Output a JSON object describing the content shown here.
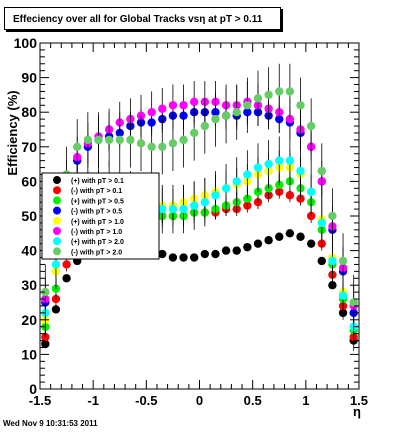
{
  "title": "Effeciency over all for Global Tracks vsη at pT > 0.11",
  "footer": "Wed Nov  9 10:31:53 2011",
  "chart_data": {
    "type": "scatter",
    "xlabel": "η",
    "ylabel": "Efficiency (%)",
    "xlim": [
      -1.5,
      1.5
    ],
    "ylim": [
      0,
      100
    ],
    "x_ticks": [
      "-1.5",
      "-1",
      "-0.5",
      "0",
      "0.5",
      "1",
      "1.5"
    ],
    "y_ticks": [
      "0",
      "10",
      "20",
      "30",
      "40",
      "50",
      "60",
      "70",
      "80",
      "90",
      "100"
    ],
    "grid": false,
    "legend_position": "left",
    "x": [
      -1.45,
      -1.35,
      -1.25,
      -1.15,
      -1.05,
      -0.95,
      -0.85,
      -0.75,
      -0.65,
      -0.55,
      -0.45,
      -0.35,
      -0.25,
      -0.15,
      -0.05,
      0.05,
      0.15,
      0.25,
      0.35,
      0.45,
      0.55,
      0.65,
      0.75,
      0.85,
      0.95,
      1.05,
      1.15,
      1.25,
      1.35,
      1.45
    ],
    "series": [
      {
        "name": "(+) with pT > 0.1",
        "color": "#000000",
        "values": [
          13,
          23,
          32,
          37,
          39,
          40,
          40,
          40,
          40,
          39,
          39,
          39,
          38,
          38,
          38,
          39,
          39,
          40,
          40,
          41,
          42,
          43,
          44,
          45,
          44,
          42,
          37,
          30,
          22,
          14
        ],
        "err": [
          1,
          1,
          1,
          1,
          1,
          1,
          1,
          1,
          1,
          1,
          1,
          1,
          1,
          1,
          1,
          1,
          1,
          1,
          1,
          1,
          1,
          1,
          1,
          1,
          1,
          1,
          1,
          1,
          1,
          1
        ]
      },
      {
        "name": "(-) with pT > 0.1",
        "color": "#ff0000",
        "values": [
          15,
          26,
          36,
          44,
          48,
          51,
          51,
          51,
          51,
          51,
          51,
          50,
          50,
          50,
          51,
          51,
          51,
          52,
          52,
          53,
          54,
          56,
          57,
          56,
          55,
          50,
          42,
          33,
          24,
          15
        ],
        "err": [
          2,
          2,
          2,
          2,
          2,
          2,
          2,
          2,
          2,
          2,
          2,
          2,
          2,
          2,
          2,
          2,
          2,
          2,
          2,
          2,
          2,
          2,
          2,
          2,
          2,
          2,
          2,
          2,
          2,
          2
        ]
      },
      {
        "name": "(+) with pT > 0.5",
        "color": "#00ee00",
        "values": [
          18,
          29,
          41,
          50,
          53,
          54,
          54,
          54,
          53,
          52,
          51,
          50,
          50,
          50,
          51,
          51,
          52,
          53,
          54,
          55,
          57,
          58,
          59,
          60,
          58,
          54,
          46,
          36,
          26,
          17
        ],
        "err": [
          3,
          3,
          3,
          3,
          3,
          3,
          3,
          3,
          3,
          3,
          3,
          3,
          3,
          3,
          3,
          3,
          3,
          3,
          3,
          3,
          3,
          3,
          3,
          3,
          3,
          3,
          3,
          3,
          3,
          3
        ]
      },
      {
        "name": "(-) with pT > 0.5",
        "color": "#0000ff",
        "values": [
          25,
          42,
          58,
          66,
          70,
          72,
          73,
          74,
          76,
          77,
          77,
          78,
          79,
          79,
          80,
          80,
          80,
          79,
          79,
          80,
          80,
          79,
          78,
          77,
          74,
          70,
          60,
          46,
          34,
          22
        ],
        "err": [
          4,
          4,
          4,
          4,
          4,
          4,
          4,
          4,
          4,
          4,
          4,
          4,
          4,
          4,
          4,
          4,
          4,
          4,
          4,
          4,
          4,
          4,
          4,
          4,
          4,
          4,
          4,
          4,
          4,
          4
        ]
      },
      {
        "name": "(+) with pT > 1.0",
        "color": "#ffff00",
        "values": [
          20,
          34,
          48,
          56,
          58,
          58,
          57,
          56,
          55,
          54,
          53,
          53,
          53,
          54,
          55,
          56,
          57,
          58,
          59,
          60,
          62,
          63,
          64,
          64,
          62,
          57,
          49,
          38,
          28,
          18
        ],
        "err": [
          5,
          5,
          5,
          5,
          5,
          5,
          5,
          5,
          5,
          5,
          5,
          5,
          5,
          5,
          5,
          5,
          5,
          5,
          5,
          5,
          5,
          5,
          5,
          5,
          5,
          5,
          5,
          5,
          5,
          5
        ]
      },
      {
        "name": "(-) with pT > 1.0",
        "color": "#ff00ff",
        "values": [
          26,
          44,
          60,
          67,
          71,
          73,
          75,
          77,
          78,
          79,
          80,
          81,
          82,
          82,
          83,
          83,
          83,
          82,
          82,
          83,
          82,
          81,
          80,
          78,
          75,
          70,
          60,
          47,
          35,
          24
        ],
        "err": [
          6,
          6,
          6,
          6,
          6,
          6,
          6,
          6,
          6,
          6,
          6,
          6,
          6,
          6,
          6,
          6,
          6,
          6,
          6,
          6,
          6,
          6,
          6,
          6,
          6,
          6,
          6,
          6,
          6,
          6
        ]
      },
      {
        "name": "(+) with pT > 2.0",
        "color": "#00ffff",
        "values": [
          22,
          36,
          50,
          58,
          60,
          60,
          59,
          57,
          56,
          55,
          53,
          52,
          52,
          52,
          53,
          54,
          56,
          58,
          60,
          62,
          64,
          65,
          66,
          66,
          63,
          57,
          48,
          37,
          27,
          18
        ],
        "err": [
          7,
          7,
          7,
          7,
          7,
          7,
          7,
          7,
          7,
          7,
          7,
          7,
          7,
          7,
          7,
          7,
          7,
          7,
          7,
          7,
          7,
          7,
          7,
          7,
          7,
          7,
          7,
          7,
          7,
          7
        ]
      },
      {
        "name": "(-) with pT > 2.0",
        "color": "#66cc66",
        "values": [
          28,
          46,
          62,
          70,
          72,
          72,
          72,
          72,
          72,
          71,
          70,
          70,
          71,
          72,
          74,
          76,
          78,
          79,
          80,
          82,
          84,
          85,
          86,
          86,
          82,
          76,
          63,
          50,
          37,
          25
        ],
        "err": [
          8,
          8,
          8,
          8,
          8,
          8,
          8,
          8,
          8,
          8,
          8,
          8,
          8,
          8,
          8,
          8,
          8,
          8,
          8,
          8,
          8,
          8,
          8,
          8,
          8,
          8,
          8,
          8,
          8,
          8
        ]
      }
    ]
  }
}
